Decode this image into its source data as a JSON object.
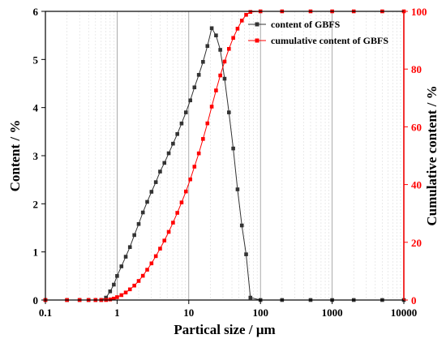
{
  "chart_data": {
    "type": "line",
    "xlabel": "Partical size / μm",
    "xscale": "log",
    "xlim": [
      0.1,
      10000
    ],
    "x_ticks": [
      "0.1",
      "1",
      "10",
      "100",
      "1000",
      "10000"
    ],
    "y_left": {
      "label": "Content / %",
      "lim": [
        0,
        6
      ],
      "ticks": [
        "0",
        "1",
        "2",
        "3",
        "4",
        "5",
        "6"
      ],
      "color": "#000000"
    },
    "y_right": {
      "label": "Cumulative content / %",
      "lim": [
        0,
        100
      ],
      "ticks": [
        "0",
        "20",
        "40",
        "60",
        "80",
        "100"
      ],
      "color": "#ff0000"
    },
    "grid": "vertical, log minor lines",
    "legend_position": "top-right",
    "series": [
      {
        "name": "content of GBFS",
        "axis": "left",
        "color": "#333333",
        "marker": "square",
        "x": [
          0.1,
          0.2,
          0.3,
          0.4,
          0.5,
          0.6,
          0.7,
          0.8,
          0.9,
          1.0,
          1.15,
          1.32,
          1.51,
          1.74,
          2.0,
          2.29,
          2.63,
          3.02,
          3.47,
          3.98,
          4.57,
          5.25,
          6.03,
          6.92,
          7.94,
          9.12,
          10.5,
          12.0,
          13.8,
          15.8,
          18.2,
          20.9,
          24.0,
          27.5,
          31.6,
          36.3,
          41.7,
          47.9,
          55.0,
          63.1,
          72.4,
          100,
          200,
          500,
          1000,
          2000,
          5000,
          10000
        ],
        "y": [
          0,
          0,
          0,
          0,
          0,
          0,
          0.05,
          0.18,
          0.32,
          0.5,
          0.7,
          0.9,
          1.1,
          1.35,
          1.58,
          1.82,
          2.04,
          2.25,
          2.45,
          2.67,
          2.85,
          3.05,
          3.25,
          3.45,
          3.67,
          3.9,
          4.15,
          4.42,
          4.68,
          4.95,
          5.28,
          5.65,
          5.5,
          5.2,
          4.6,
          3.9,
          3.15,
          2.3,
          1.55,
          0.95,
          0.05,
          0,
          0,
          0,
          0,
          0,
          0,
          0
        ]
      },
      {
        "name": "cumulative content of GBFS",
        "axis": "right",
        "color": "#ff0000",
        "marker": "square",
        "x": [
          0.1,
          0.2,
          0.3,
          0.4,
          0.5,
          0.6,
          0.7,
          0.8,
          0.9,
          1.0,
          1.15,
          1.32,
          1.51,
          1.74,
          2.0,
          2.29,
          2.63,
          3.02,
          3.47,
          3.98,
          4.57,
          5.25,
          6.03,
          6.92,
          7.94,
          9.12,
          10.5,
          12.0,
          13.8,
          15.8,
          18.2,
          20.9,
          24.0,
          27.5,
          31.6,
          36.3,
          41.7,
          47.9,
          55.0,
          63.1,
          72.4,
          100,
          200,
          500,
          1000,
          2000,
          5000,
          10000
        ],
        "y": [
          0,
          0,
          0,
          0,
          0,
          0,
          0,
          0.2,
          0.5,
          1.0,
          1.7,
          2.6,
          3.7,
          5.0,
          6.6,
          8.4,
          10.5,
          12.7,
          15.2,
          17.8,
          20.6,
          23.6,
          26.8,
          30.2,
          33.8,
          37.6,
          41.8,
          46.2,
          50.8,
          55.8,
          61.2,
          67.0,
          72.6,
          77.8,
          82.6,
          87.0,
          90.8,
          94.0,
          96.8,
          98.8,
          99.8,
          100,
          100,
          100,
          100,
          100,
          100,
          100
        ]
      }
    ]
  }
}
